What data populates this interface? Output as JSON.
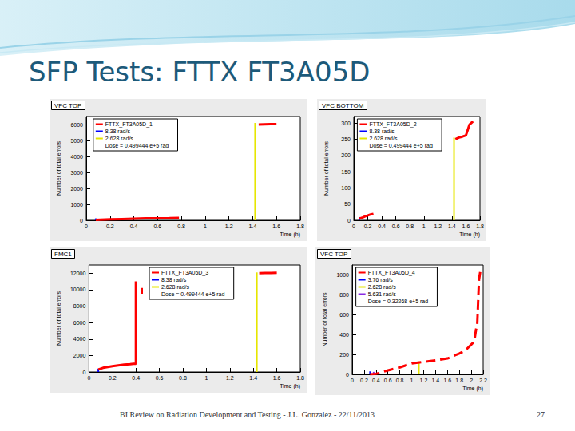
{
  "slide": {
    "title": "SFP Tests: FTTX FT3A05D",
    "footer": "BI Review on Radiation Development and Testing - J.L. Gonzalez - 22/11/2013",
    "page": 27
  },
  "chart_data": [
    {
      "type": "line",
      "title": "VFC TOP",
      "xlabel": "Time (h)",
      "ylabel": "Number of total errors",
      "xlim": [
        0,
        1.8
      ],
      "xticks": [
        0,
        0.2,
        0.4,
        0.6,
        0.8,
        1,
        1.2,
        1.4,
        1.6,
        1.8
      ],
      "ylim": [
        0,
        6500
      ],
      "yticks": [
        0,
        1000,
        2000,
        3000,
        4000,
        5000,
        6000
      ],
      "grid": false,
      "legend": "top",
      "annotations": [
        "Dose = 0.499444 e+5 rad"
      ],
      "series": [
        {
          "name": "FTTX_FT3A05D_1",
          "color": "#ff0000",
          "x": [
            0.08,
            0.12,
            0.2,
            0.3,
            0.4,
            0.5,
            0.6,
            0.7,
            0.78,
            1.0,
            1.45,
            1.5,
            1.55,
            1.6
          ],
          "values": [
            20,
            40,
            60,
            80,
            100,
            120,
            130,
            140,
            150,
            null,
            6000,
            6010,
            6020,
            6030
          ]
        },
        {
          "name": "8.38 rad/s",
          "color": "#0000ff",
          "x": [
            0.08,
            0.08
          ],
          "values": [
            0,
            120
          ]
        },
        {
          "name": "2.628 rad/s",
          "color": "#e6e600",
          "x": [
            1.42,
            1.42
          ],
          "values": [
            0,
            6100
          ]
        }
      ]
    },
    {
      "type": "line",
      "title": "VFC BOTTOM",
      "xlabel": "Time (h)",
      "ylabel": "Number of total errors",
      "xlim": [
        0,
        1.8
      ],
      "xticks": [
        0,
        0.2,
        0.4,
        0.6,
        0.8,
        1,
        1.2,
        1.4,
        1.6,
        1.8
      ],
      "ylim": [
        0,
        320
      ],
      "yticks": [
        0,
        50,
        100,
        150,
        200,
        250,
        300
      ],
      "grid": false,
      "legend": "top",
      "annotations": [
        "Dose = 0.499444 e+5 rad"
      ],
      "series": [
        {
          "name": "FTTX_FT3A05D_2",
          "color": "#ff0000",
          "x": [
            0.08,
            0.12,
            0.16,
            0.2,
            0.24,
            0.28,
            0.9,
            1.45,
            1.5,
            1.55,
            1.6,
            1.62,
            1.65,
            1.7
          ],
          "values": [
            5,
            8,
            12,
            15,
            18,
            20,
            null,
            250,
            255,
            258,
            262,
            275,
            295,
            305
          ]
        },
        {
          "name": "8.38 rad/s",
          "color": "#0000ff",
          "x": [
            0.08,
            0.08
          ],
          "values": [
            0,
            10
          ]
        },
        {
          "name": "2.628 rad/s",
          "color": "#e6e600",
          "x": [
            1.43,
            1.43
          ],
          "values": [
            0,
            255
          ]
        }
      ]
    },
    {
      "type": "line",
      "title": "FMC1",
      "xlabel": "Time (h)",
      "ylabel": "Number of total errors",
      "xlim": [
        0,
        1.8
      ],
      "xticks": [
        0,
        0.2,
        0.4,
        0.6,
        0.8,
        1,
        1.2,
        1.4,
        1.6,
        1.8
      ],
      "ylim": [
        0,
        13000
      ],
      "yticks": [
        0,
        2000,
        4000,
        6000,
        8000,
        10000,
        12000
      ],
      "grid": false,
      "legend": "top",
      "annotations": [
        "Dose = 0.499444 e+5 rad"
      ],
      "series": [
        {
          "name": "FTTX_FT3A05D_3",
          "color": "#ff0000",
          "x": [
            0.08,
            0.12,
            0.16,
            0.2,
            0.25,
            0.3,
            0.35,
            0.38,
            0.4,
            0.4,
            0.42,
            0.45,
            0.45,
            1.0,
            1.45,
            1.5,
            1.55,
            1.6
          ],
          "values": [
            300,
            500,
            600,
            700,
            800,
            900,
            950,
            1000,
            1000,
            11000,
            null,
            9500,
            10200,
            null,
            12000,
            12020,
            12040,
            12060
          ]
        },
        {
          "name": "8.38 rad/s",
          "color": "#0000ff",
          "x": [
            0.08,
            0.08
          ],
          "values": [
            0,
            400
          ]
        },
        {
          "name": "2.628 rad/s",
          "color": "#e6e600",
          "x": [
            1.43,
            1.43
          ],
          "values": [
            0,
            12100
          ]
        }
      ]
    },
    {
      "type": "line",
      "title": "VFC TOP",
      "xlabel": "Time (h)",
      "ylabel": "Number of total errors",
      "xlim": [
        0,
        2.2
      ],
      "xticks": [
        0,
        0.2,
        0.4,
        0.6,
        0.8,
        1,
        1.2,
        1.4,
        1.6,
        1.8,
        2,
        2.2
      ],
      "ylim": [
        0,
        1100
      ],
      "yticks": [
        0,
        200,
        400,
        600,
        800,
        1000
      ],
      "grid": false,
      "legend": "top",
      "annotations": [
        "Dose = 0.32268 e+5 rad"
      ],
      "series": [
        {
          "name": "FTTX_FT3A05D_4",
          "color": "#ff0000",
          "line_style": "dashed",
          "x": [
            0.3,
            0.4,
            0.6,
            0.8,
            1.0,
            1.2,
            1.4,
            1.6,
            1.7,
            1.8,
            1.9,
            2.0,
            2.05,
            2.08,
            2.1,
            2.12,
            2.13,
            2.15
          ],
          "values": [
            0,
            5,
            40,
            70,
            110,
            125,
            140,
            160,
            185,
            210,
            240,
            300,
            330,
            450,
            500,
            800,
            950,
            1030
          ]
        },
        {
          "name": "3.76 rad/s",
          "color": "#0000ff",
          "x": [
            0.3,
            0.3
          ],
          "values": [
            0,
            30
          ]
        },
        {
          "name": "2.628 rad/s",
          "color": "#e6e600",
          "x": [
            1.12,
            1.12
          ],
          "values": [
            0,
            130
          ]
        },
        {
          "name": "5.631 rad/s",
          "color": "#8a2be2",
          "x": [
            0.36,
            0.36
          ],
          "values": [
            0,
            25
          ]
        }
      ]
    }
  ]
}
